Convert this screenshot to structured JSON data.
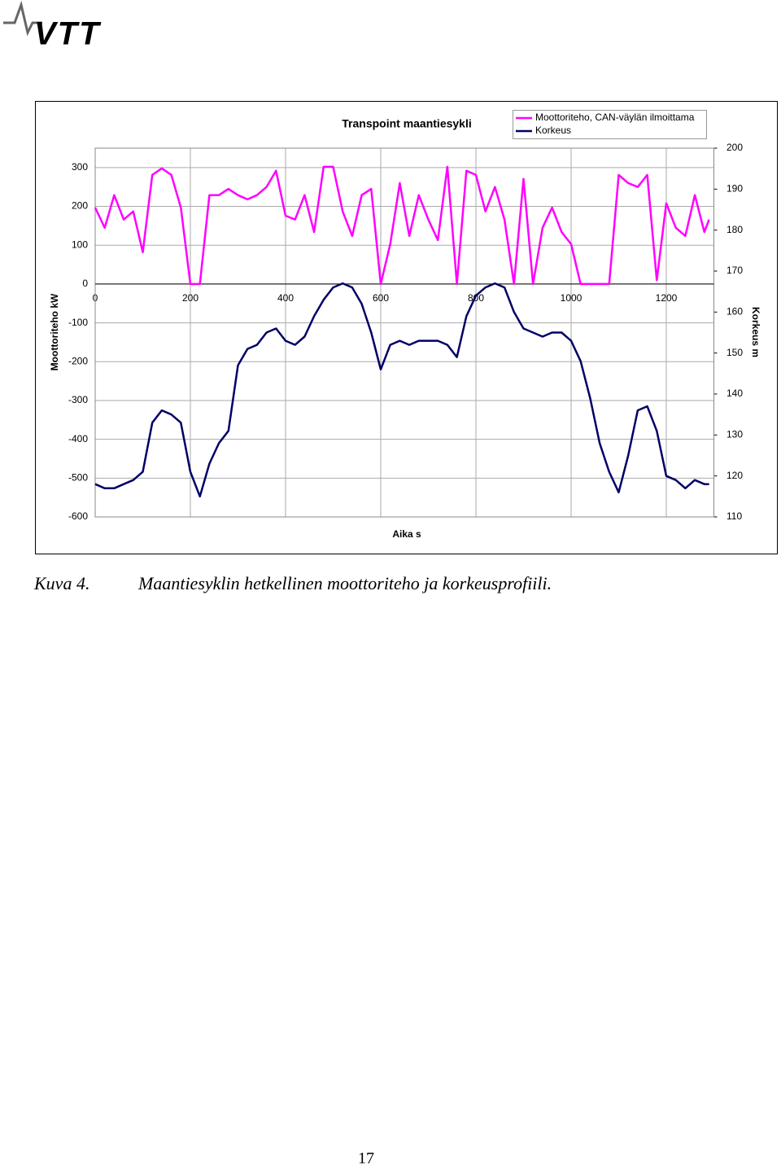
{
  "header": {
    "logo": "VTT"
  },
  "chart_data": {
    "type": "line",
    "title": "Transpoint maantiesykli",
    "x_label": "Aika s",
    "y_label": "Moottoriteho kW",
    "y2_label": "Korkeus m",
    "x": [
      0,
      20,
      40,
      60,
      80,
      100,
      120,
      140,
      160,
      180,
      200,
      220,
      240,
      260,
      280,
      300,
      320,
      340,
      360,
      380,
      400,
      420,
      440,
      460,
      480,
      500,
      520,
      540,
      560,
      580,
      600,
      620,
      640,
      660,
      680,
      700,
      720,
      740,
      760,
      780,
      800,
      820,
      840,
      860,
      880,
      900,
      920,
      940,
      960,
      980,
      1000,
      1020,
      1040,
      1060,
      1080,
      1100,
      1120,
      1140,
      1160,
      1180,
      1200,
      1220,
      1240,
      1260,
      1280,
      1290
    ],
    "series": [
      {
        "name": "Moottoriteho, CAN-väylän ilmoittama",
        "color": "#ff00ff",
        "values": [
          197,
          145,
          229,
          166,
          187,
          82,
          281,
          298,
          281,
          197,
          0,
          0,
          229,
          229,
          245,
          229,
          218,
          229,
          250,
          292,
          176,
          166,
          229,
          134,
          302,
          302,
          187,
          124,
          229,
          245,
          0,
          103,
          260,
          124,
          229,
          166,
          113,
          302,
          0,
          292,
          281,
          187,
          250,
          166,
          0,
          271,
          0,
          145,
          197,
          134,
          103,
          0,
          0,
          0,
          0,
          281,
          260,
          250,
          281,
          10,
          208,
          145,
          124,
          229,
          134,
          166
        ]
      },
      {
        "name": "Korkeus",
        "color": "#000066",
        "axis": "y2",
        "values": [
          118,
          117,
          117,
          118,
          119,
          121,
          133,
          136,
          135,
          133,
          121,
          115,
          123,
          128,
          131,
          147,
          151,
          152,
          155,
          156,
          153,
          152,
          154,
          159,
          163,
          166,
          167,
          166,
          162,
          155,
          146,
          152,
          153,
          152,
          153,
          153,
          153,
          152,
          149,
          159,
          164,
          166,
          167,
          166,
          160,
          156,
          155,
          154,
          155,
          155,
          153,
          148,
          139,
          128,
          121,
          116,
          125,
          136,
          137,
          131,
          120,
          119,
          117,
          119,
          118,
          118
        ]
      }
    ],
    "xlim": [
      0,
      1300
    ],
    "xticks": [
      0,
      200,
      400,
      600,
      800,
      1000,
      1200
    ],
    "ylim": [
      -600,
      350
    ],
    "yticks": [
      -600,
      -500,
      -400,
      -300,
      -200,
      -100,
      0,
      100,
      200,
      300
    ],
    "y2lim": [
      110,
      200
    ],
    "y2ticks": [
      110,
      120,
      130,
      140,
      150,
      160,
      170,
      180,
      190,
      200
    ],
    "grid": true
  },
  "caption": {
    "label": "Kuva 4.",
    "text": "Maantiesyklin hetkellinen moottoriteho ja korkeusprofiili."
  },
  "footer": {
    "page_number": "17"
  }
}
